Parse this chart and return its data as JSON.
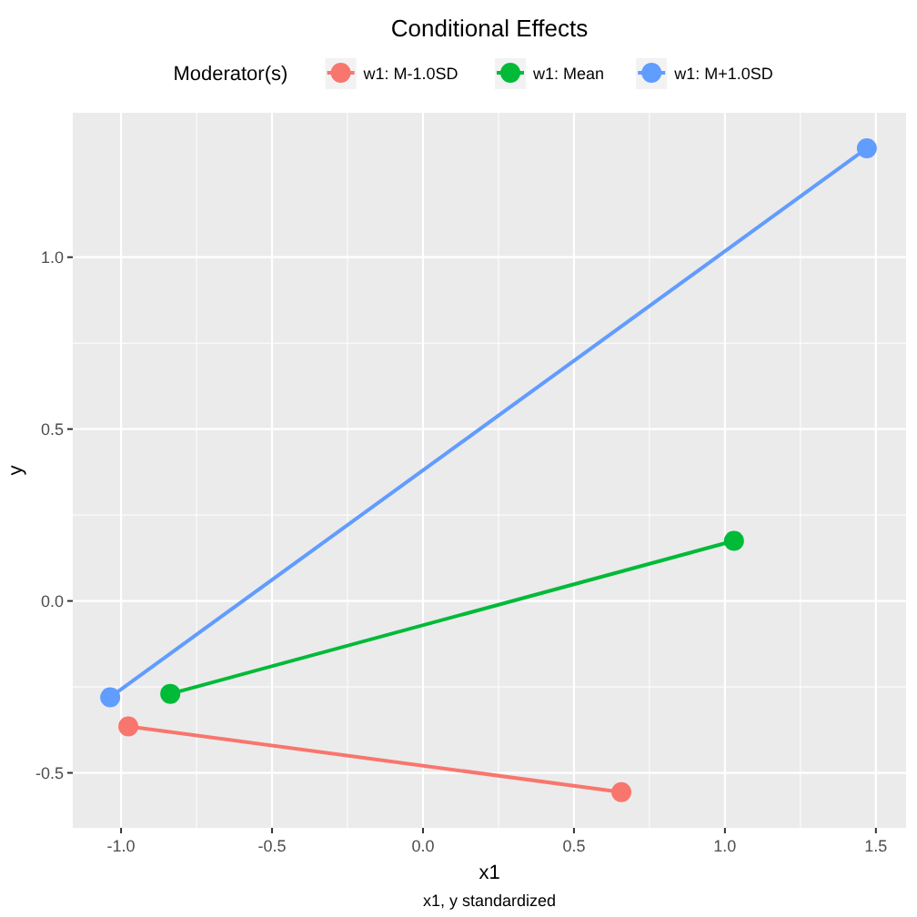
{
  "chart_data": {
    "type": "line",
    "title": "Conditional Effects",
    "xlabel": "x1",
    "ylabel": "y",
    "legend_title": "Moderator(s)",
    "legend": "top",
    "grid": true,
    "marker": "circle",
    "line_style": "solid",
    "annotations": [
      "x1, y standardized"
    ],
    "xlim": [
      -1.16,
      1.6
    ],
    "ylim": [
      -0.66,
      1.42
    ],
    "xticks": [
      {
        "value": -1,
        "label": "-1.0"
      },
      -0.5,
      {
        "value": 0,
        "label": "0.0"
      },
      0.5,
      {
        "value": 1,
        "label": "1.0"
      },
      1.5
    ],
    "yticks": [
      -0.5,
      {
        "value": 0,
        "label": "0.0"
      },
      0.5,
      {
        "value": 1,
        "label": "1.0"
      }
    ],
    "series": [
      {
        "name": "w1: M-1.0SD",
        "color": "#f8766d",
        "x": [
          -0.976,
          0.657
        ],
        "values": [
          -0.365,
          -0.556
        ]
      },
      {
        "name": "w1: Mean",
        "color": "#00ba38",
        "x": [
          -0.837,
          1.03
        ],
        "values": [
          -0.27,
          0.175
        ]
      },
      {
        "name": "w1: M+1.0SD",
        "color": "#619cff",
        "x": [
          -1.036,
          1.47
        ],
        "values": [
          -0.28,
          1.317
        ]
      }
    ]
  }
}
